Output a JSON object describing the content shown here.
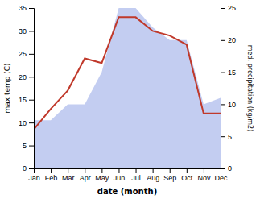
{
  "chart_data": {
    "type": "line",
    "categories": [
      "Jan",
      "Feb",
      "Mar",
      "Apr",
      "May",
      "Jun",
      "Jul",
      "Aug",
      "Sep",
      "Oct",
      "Nov",
      "Dec"
    ],
    "xlabel": "date (month)",
    "ylabel": "max temp (C)",
    "y2label": "med. precipitation (kg/m2)",
    "series": [
      {
        "type": "area",
        "axis": "y2",
        "color": "#b8c4ee",
        "values": [
          7.5,
          7.5,
          10.0,
          10.0,
          15.0,
          25.0,
          25.0,
          22.0,
          20.0,
          20.0,
          10.0,
          11.0
        ]
      },
      {
        "type": "line",
        "color": "#c0392b",
        "values": [
          8.5,
          13.0,
          17.0,
          24.0,
          23.0,
          33.0,
          33.0,
          30.0,
          29.0,
          27.0,
          12.0,
          12.0
        ]
      }
    ],
    "ylim": [
      0,
      35
    ],
    "yticks": [
      0,
      5,
      10,
      15,
      20,
      25,
      30,
      35
    ],
    "y2lim": [
      0,
      25
    ],
    "y2ticks": [
      0,
      5,
      10,
      15,
      20,
      25
    ]
  }
}
